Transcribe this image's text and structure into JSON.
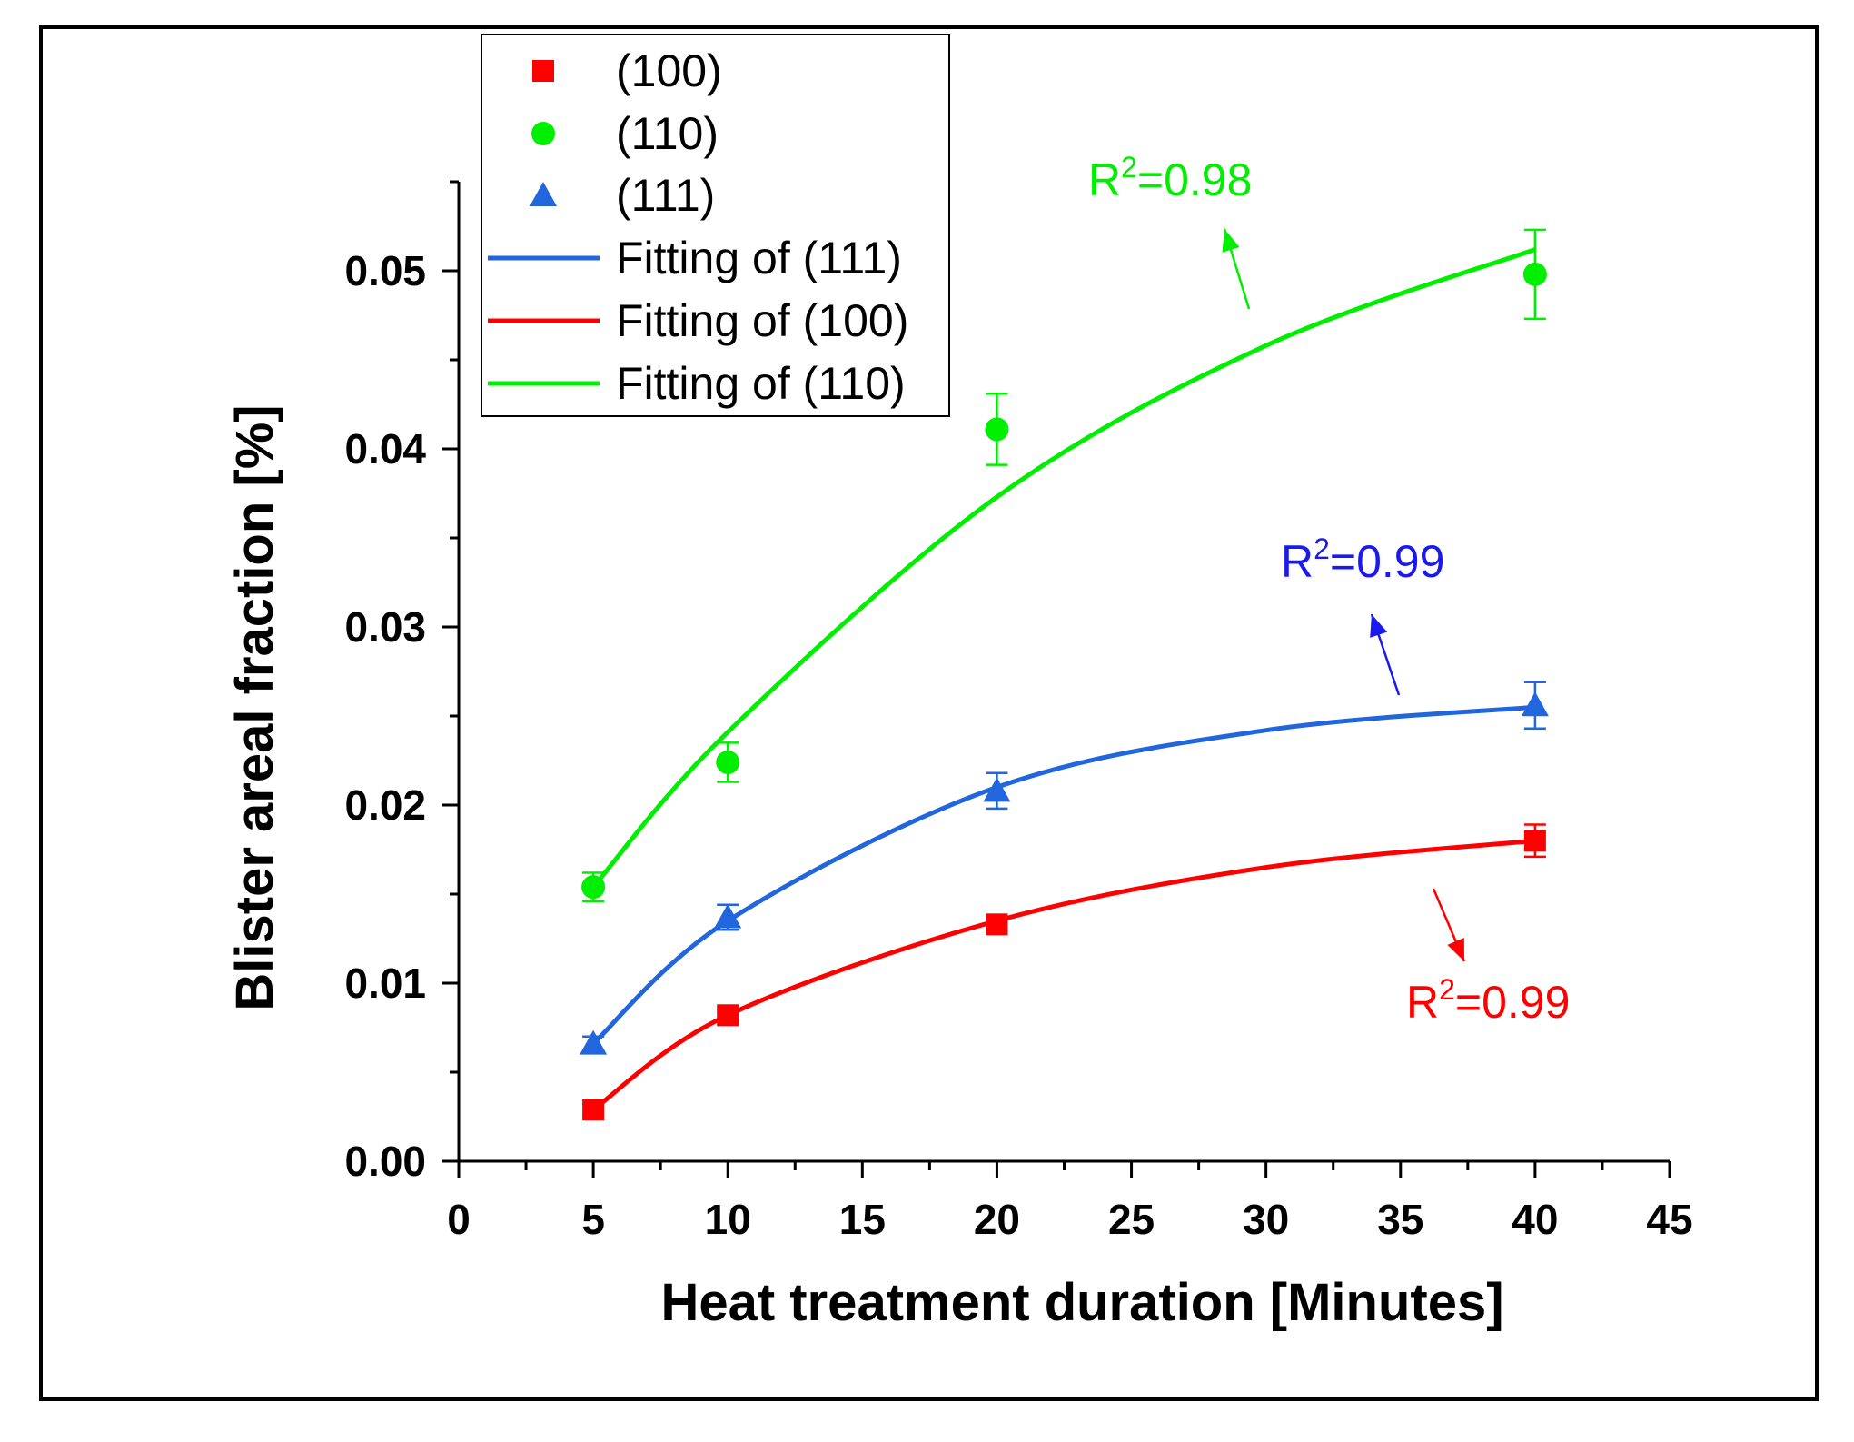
{
  "chart_data": {
    "type": "scatter",
    "title": "",
    "xlabel": "Heat treatment duration [Minutes]",
    "ylabel": "Blister areal fraction [%]",
    "xlim": [
      0,
      45
    ],
    "ylim": [
      0,
      0.055
    ],
    "xticks": [
      "0",
      "5",
      "10",
      "15",
      "20",
      "25",
      "30",
      "35",
      "40",
      "45"
    ],
    "yticks": [
      "0.00",
      "0.01",
      "0.02",
      "0.03",
      "0.04",
      "0.05"
    ],
    "x": [
      5,
      10,
      20,
      40
    ],
    "series": [
      {
        "name": "(100)",
        "marker": "square",
        "color": "#ff0000",
        "values": [
          0.0029,
          0.0082,
          0.0133,
          0.018
        ],
        "errors": [
          0.0003,
          0.0003,
          0.0004,
          0.0009
        ],
        "fit_label": "Fitting of (100)",
        "fit_color": "#ff0000",
        "fit": [
          0.0029,
          0.0082,
          0.0135,
          0.0165,
          0.018
        ],
        "fit_x": [
          5,
          10,
          20,
          30,
          40
        ],
        "r2_label": "R",
        "r2_value": "=0.99",
        "r2_color": "#ff0000"
      },
      {
        "name": "(110)",
        "marker": "circle",
        "color": "#00ee00",
        "values": [
          0.0154,
          0.0224,
          0.0411,
          0.0498
        ],
        "errors": [
          0.0008,
          0.0011,
          0.002,
          0.0025
        ],
        "fit_label": "Fitting of (110)",
        "fit_color": "#00ee00",
        "fit": [
          0.0154,
          0.0241,
          0.0373,
          0.0458,
          0.0512
        ],
        "fit_x": [
          5,
          10,
          20,
          30,
          40
        ],
        "r2_label": "R",
        "r2_value": "=0.98",
        "r2_color": "#00ee00"
      },
      {
        "name": "(111)",
        "marker": "triangle",
        "color": "#2266dd",
        "values": [
          0.0066,
          0.0137,
          0.0208,
          0.0256
        ],
        "errors": [
          0.0004,
          0.0007,
          0.001,
          0.0013
        ],
        "fit_label": "Fitting of (111)",
        "fit_color": "#2266dd",
        "fit": [
          0.0066,
          0.0135,
          0.021,
          0.0242,
          0.0255
        ],
        "fit_x": [
          5,
          10,
          20,
          30,
          40
        ],
        "r2_label": "R",
        "r2_value": "=0.99",
        "r2_color": "#1a1aee"
      }
    ],
    "legend": [
      "(100)",
      "(110)",
      "(111)",
      "Fitting of (111)",
      "Fitting of (100)",
      "Fitting of (110)"
    ],
    "legend_position": "top-left"
  }
}
